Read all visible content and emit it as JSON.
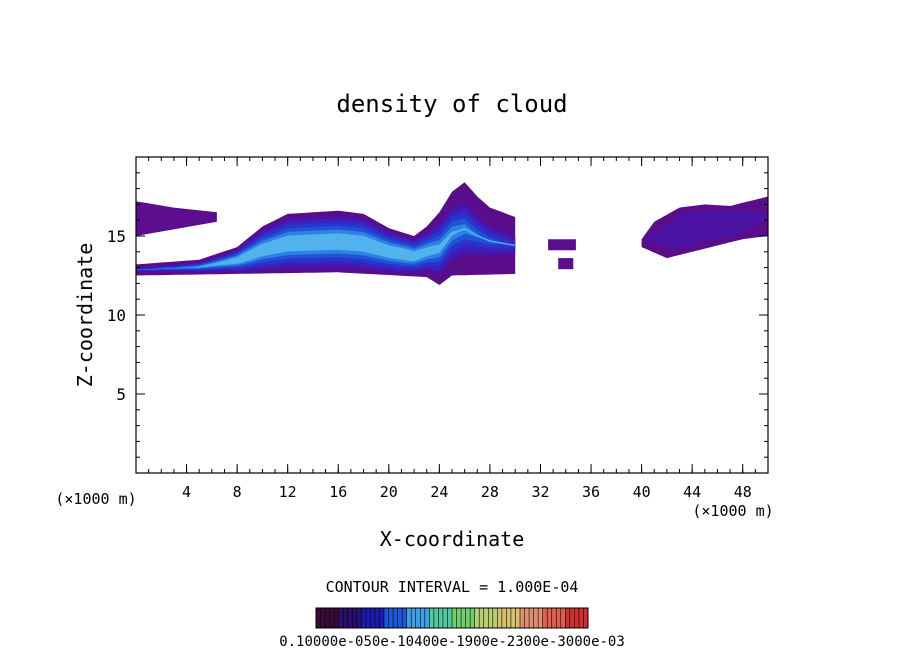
{
  "chart_data": {
    "type": "heatmap",
    "title": "density of cloud",
    "xlabel": "X-coordinate",
    "ylabel": "Z-coordinate",
    "x_unit": "(×1000 m)",
    "xlim": [
      0,
      50
    ],
    "ylim": [
      0,
      20
    ],
    "x_ticks": [
      4,
      8,
      12,
      16,
      20,
      24,
      28,
      32,
      36,
      40,
      44,
      48
    ],
    "y_ticks": [
      5,
      10,
      15
    ],
    "contour_interval_label": "CONTOUR INTERVAL = 1.000E-04",
    "colorbar_label": "0.10000e-050e-10400e-1900e-2300e-3000e-03",
    "colorbar_colors": [
      "#3a0a3a",
      "#2a0f6e",
      "#1b1bb0",
      "#1e58d8",
      "#3fa0e6",
      "#50c8a0",
      "#70d070",
      "#b8d070",
      "#d8c070",
      "#e09070",
      "#e06050",
      "#d03030"
    ],
    "cloud_regions": [
      {
        "x": [
          0,
          3,
          6.4,
          6.4,
          0
        ],
        "z": [
          17.2,
          16.8,
          16.5,
          15.9,
          15.0
        ],
        "peak": 0.3
      },
      {
        "x_from": 0,
        "x_to": 30,
        "base": [
          [
            0,
            12.5
          ],
          [
            8,
            12.6
          ],
          [
            16,
            12.7
          ],
          [
            23,
            12.4
          ],
          [
            24,
            11.9
          ],
          [
            25,
            12.5
          ],
          [
            30,
            12.6
          ]
        ],
        "top": [
          [
            0,
            13.2
          ],
          [
            5,
            13.5
          ],
          [
            8,
            14.3
          ],
          [
            10,
            15.6
          ],
          [
            12,
            16.4
          ],
          [
            14,
            16.5
          ],
          [
            16,
            16.6
          ],
          [
            18,
            16.4
          ],
          [
            20,
            15.5
          ],
          [
            22,
            15.0
          ],
          [
            23,
            15.6
          ],
          [
            24,
            16.5
          ],
          [
            25,
            17.8
          ],
          [
            26,
            18.4
          ],
          [
            27,
            17.5
          ],
          [
            28,
            16.8
          ],
          [
            30,
            16.2
          ]
        ],
        "peak": 4.5
      },
      {
        "x": [
          32.6,
          34.8,
          34.8,
          32.6
        ],
        "z": [
          14.8,
          14.8,
          14.1,
          14.1
        ],
        "peak": 0.3
      },
      {
        "x": [
          33.4,
          34.6,
          34.6,
          33.4
        ],
        "z": [
          13.6,
          13.6,
          12.9,
          12.9
        ],
        "peak": 0.2
      },
      {
        "x_from": 40,
        "x_to": 50,
        "base": [
          [
            40,
            14.3
          ],
          [
            42,
            13.6
          ],
          [
            44,
            14.0
          ],
          [
            46,
            14.4
          ],
          [
            48,
            14.8
          ],
          [
            50,
            15.0
          ]
        ],
        "top": [
          [
            40,
            14.8
          ],
          [
            41,
            15.9
          ],
          [
            43,
            16.8
          ],
          [
            45,
            17.0
          ],
          [
            47,
            16.9
          ],
          [
            50,
            17.5
          ]
        ],
        "peak": 1.0
      }
    ]
  }
}
